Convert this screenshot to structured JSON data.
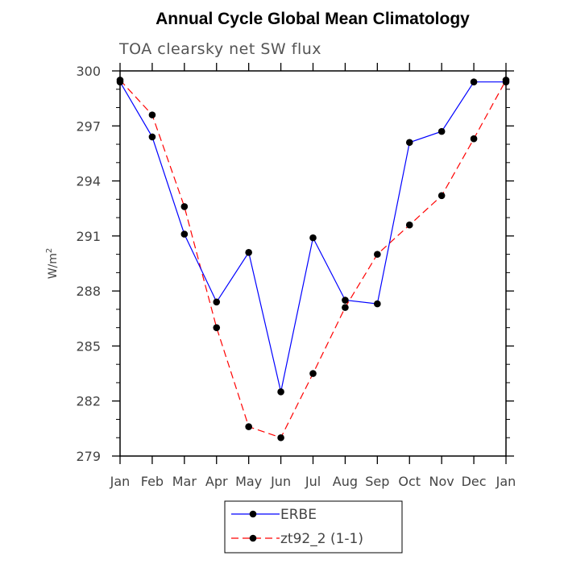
{
  "chart_data": {
    "type": "line",
    "title": "Annual Cycle Global Mean Climatology",
    "subtitle": "TOA clearsky net SW flux",
    "ylabel": "W/m",
    "ylabel_sup": "2",
    "categories": [
      "Jan",
      "Feb",
      "Mar",
      "Apr",
      "May",
      "Jun",
      "Jul",
      "Aug",
      "Sep",
      "Oct",
      "Nov",
      "Dec",
      "Jan"
    ],
    "ylim": [
      279,
      300
    ],
    "yticks": [
      279,
      282,
      285,
      288,
      291,
      294,
      297,
      300
    ],
    "grid": false,
    "legend_position": "bottom-center",
    "series": [
      {
        "name": "ERBE",
        "color": "#0000ff",
        "line_style": "solid",
        "marker": "filled-circle",
        "values": [
          299.4,
          296.4,
          291.1,
          287.4,
          290.1,
          282.5,
          290.9,
          287.5,
          287.3,
          296.1,
          296.7,
          299.4,
          299.4
        ]
      },
      {
        "name": "zt92_2 (1-1)",
        "color": "#ff0000",
        "line_style": "dashed",
        "marker": "filled-circle",
        "values": [
          299.5,
          297.6,
          292.6,
          286.0,
          280.6,
          280.0,
          283.5,
          287.1,
          290.0,
          291.6,
          293.2,
          296.3,
          299.5
        ]
      }
    ]
  }
}
